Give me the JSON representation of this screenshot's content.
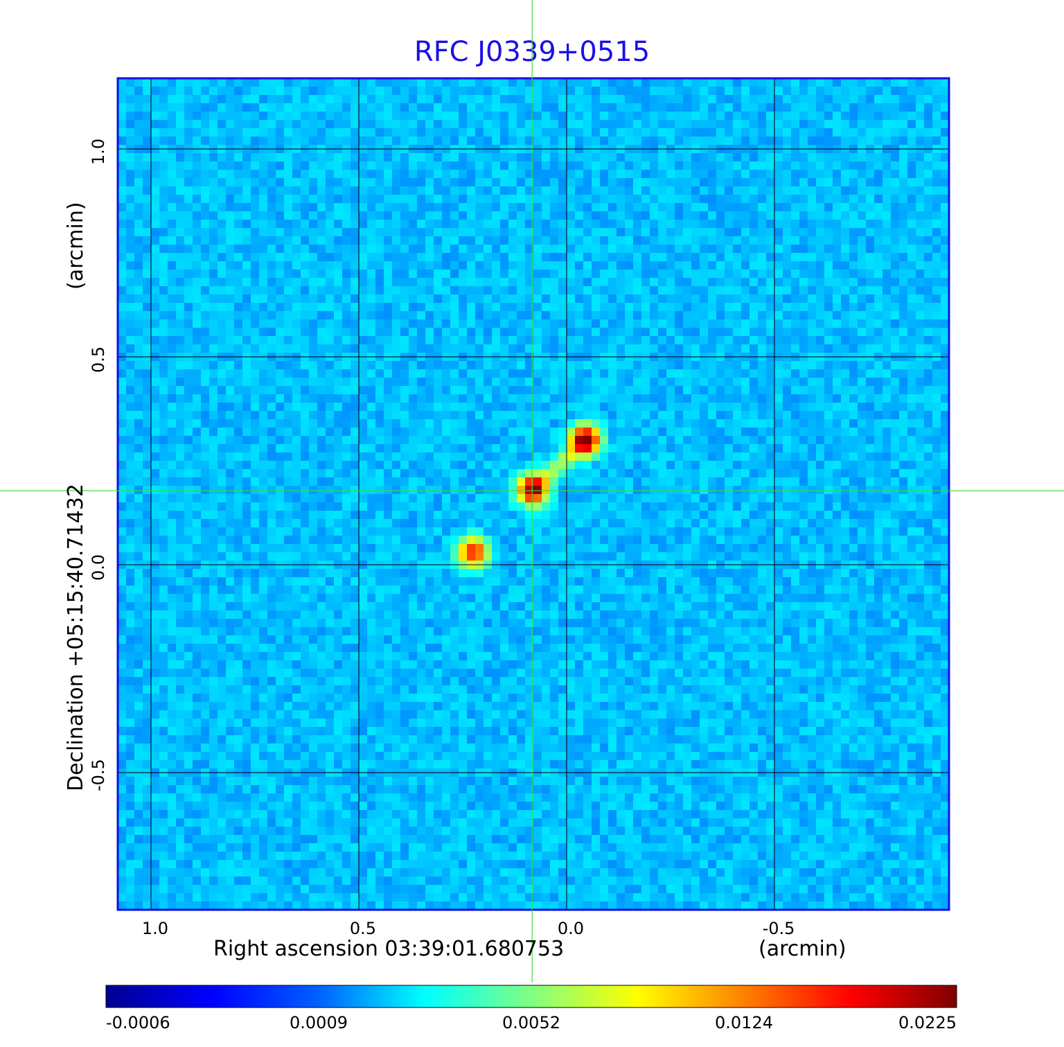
{
  "chart_data": {
    "type": "heatmap",
    "title": "RFC J0339+0515",
    "xlabel": "Right ascension  03:39:01.680753",
    "xunit": "(arcmin)",
    "ylabel": "Declination  +05:15:40.71432",
    "yunit": "(arcmin)",
    "xlim": [
      1.08,
      -0.92
    ],
    "ylim": [
      -0.83,
      1.17
    ],
    "x_ticks": [
      "1.0",
      "0.5",
      "0.0",
      "-0.5"
    ],
    "x_tick_values": [
      1.0,
      0.5,
      0.0,
      -0.5
    ],
    "y_ticks": [
      "-0.5",
      "0.0",
      "0.5",
      "1.0"
    ],
    "y_tick_values": [
      -0.5,
      0.0,
      0.5,
      1.0
    ],
    "grid": true,
    "crosshair": {
      "x": 0.083,
      "y": 0.178,
      "color": "#3ddc3d"
    },
    "colormap": "jet",
    "colorbar": {
      "ticks": [
        "-0.0006",
        "0.0009",
        "0.0052",
        "0.0124",
        "0.0225"
      ],
      "range": [
        -0.0006,
        0.0225
      ]
    },
    "sources": [
      {
        "x": -0.045,
        "y": 0.3,
        "peak": 0.0225
      },
      {
        "x": 0.082,
        "y": 0.18,
        "peak": 0.0205
      },
      {
        "x": 0.225,
        "y": 0.03,
        "peak": 0.015
      }
    ]
  }
}
